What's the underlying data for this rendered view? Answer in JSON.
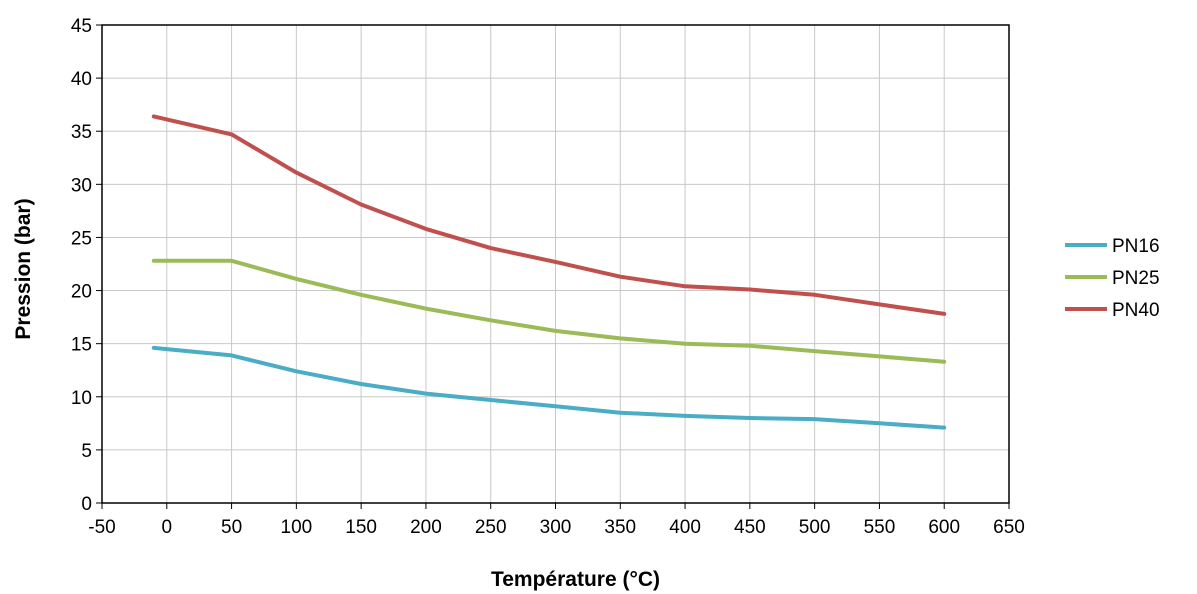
{
  "chart_data": {
    "type": "line",
    "title": "",
    "xlabel": "Température (°C)",
    "ylabel": "Pression (bar)",
    "xlim": [
      -50,
      650
    ],
    "ylim": [
      0,
      45
    ],
    "xticks": [
      "-50",
      "0",
      "50",
      "100",
      "150",
      "200",
      "250",
      "300",
      "350",
      "400",
      "450",
      "500",
      "550",
      "600",
      "650"
    ],
    "yticks": [
      "0",
      "5",
      "10",
      "15",
      "20",
      "25",
      "30",
      "35",
      "40",
      "45"
    ],
    "grid": true,
    "legend_position": "right",
    "x": [
      -10,
      50,
      100,
      150,
      200,
      250,
      300,
      350,
      400,
      450,
      500,
      550,
      600
    ],
    "series": [
      {
        "name": "PN16",
        "color": "#4bacc6",
        "values": [
          14.6,
          13.9,
          12.4,
          11.2,
          10.3,
          9.7,
          9.1,
          8.5,
          8.2,
          8.0,
          7.9,
          7.5,
          7.1
        ]
      },
      {
        "name": "PN25",
        "color": "#9bbb59",
        "values": [
          22.8,
          22.8,
          21.1,
          19.6,
          18.3,
          17.2,
          16.2,
          15.5,
          15.0,
          14.8,
          14.3,
          13.8,
          13.3
        ]
      },
      {
        "name": "PN40",
        "color": "#c0504d",
        "values": [
          36.4,
          34.7,
          31.1,
          28.1,
          25.8,
          24.0,
          22.7,
          21.3,
          20.4,
          20.1,
          19.6,
          18.7,
          17.8
        ]
      }
    ]
  }
}
